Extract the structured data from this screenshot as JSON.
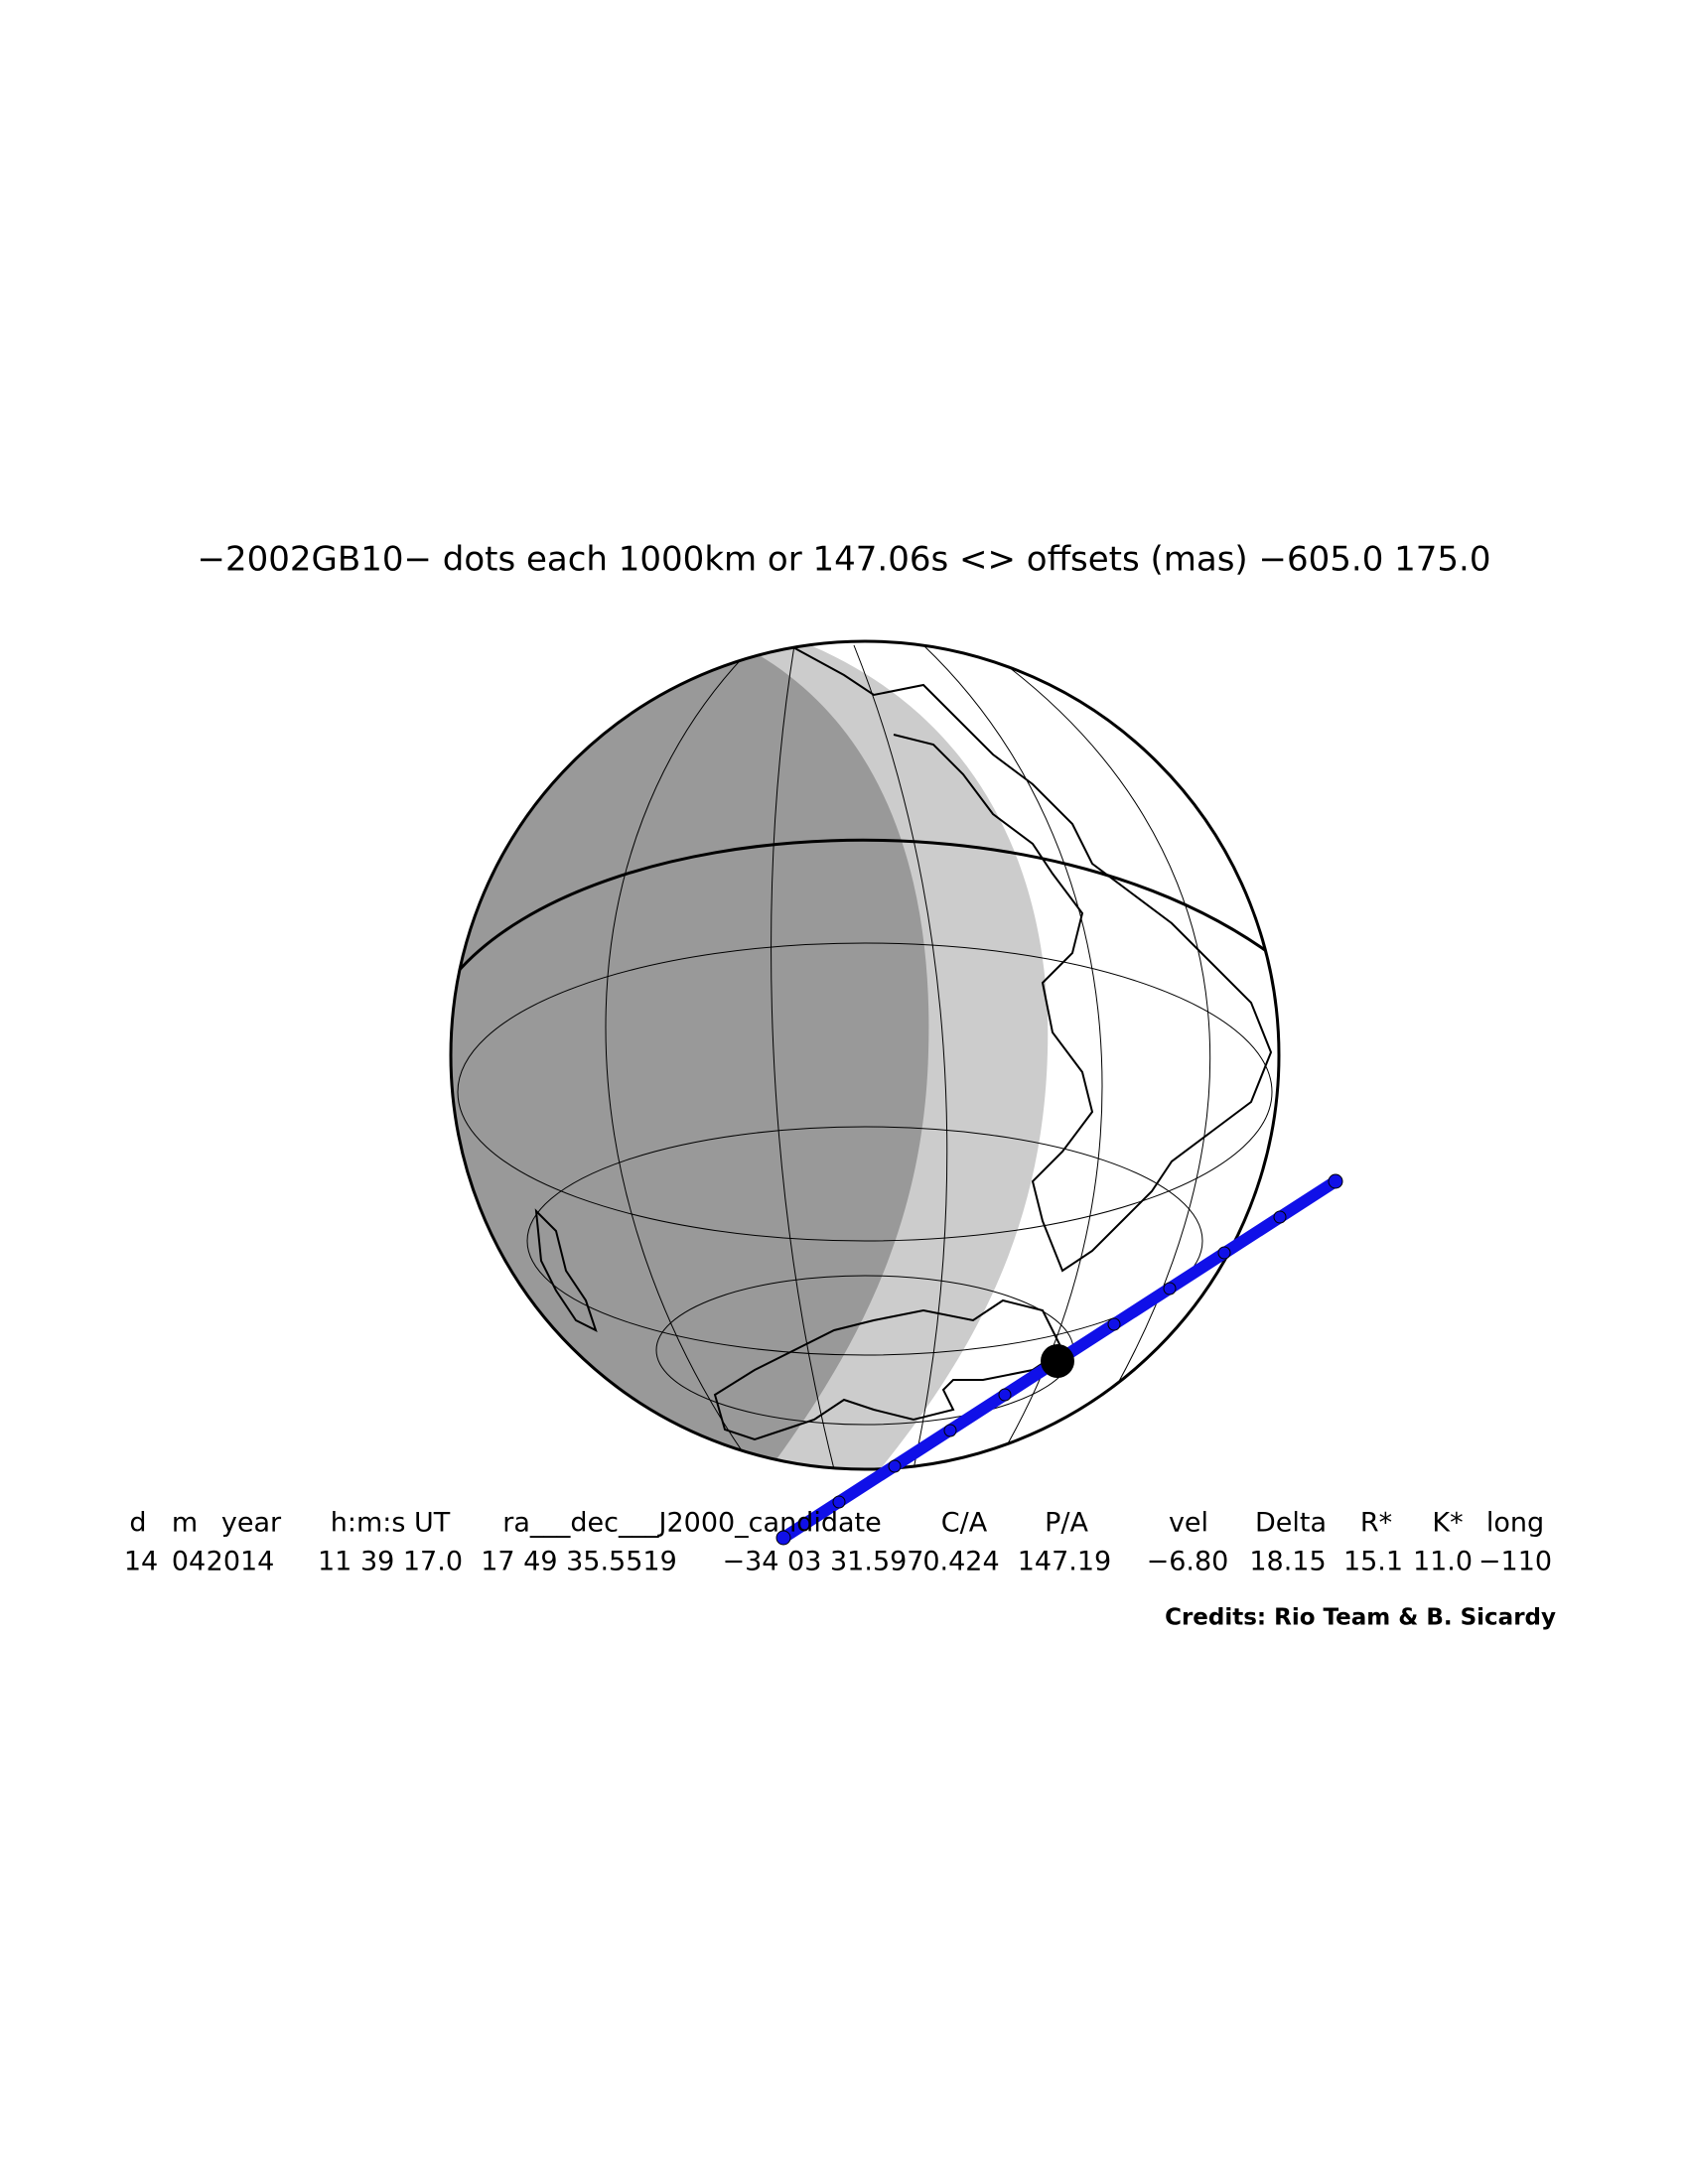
{
  "title": "−2002GB10− dots each 1000km or 147.06s <> offsets (mas) −605.0  175.0",
  "table": {
    "header": [
      "d",
      "m",
      "year",
      "h:m:s UT",
      "ra___dec___J2000_candidate",
      "C/A",
      "P/A",
      "vel",
      "Delta",
      "R*",
      "K*",
      "long"
    ],
    "values": [
      "14",
      "04",
      "2014",
      "11 39 17.0",
      "17 49 35.5519",
      "−34 03 31.597",
      "0.424",
      "147.19",
      "−6.80",
      "18.15",
      "15.1",
      "11.0",
      "−110"
    ]
  },
  "credits": "Credits: Rio Team & B. Sicardy"
}
